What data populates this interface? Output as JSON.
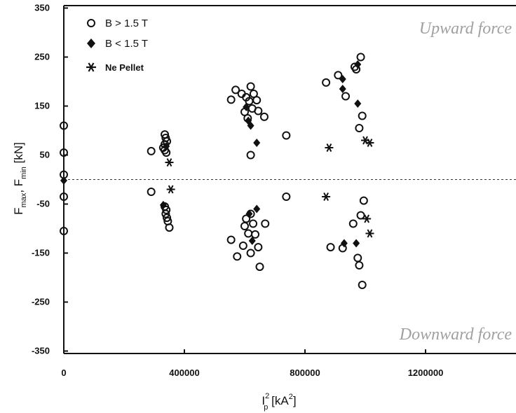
{
  "chart_data": {
    "type": "scatter",
    "x_ticks": [
      {
        "value": 0,
        "label": "0"
      },
      {
        "value": 400000,
        "label": "400000"
      },
      {
        "value": 800000,
        "label": "800000"
      },
      {
        "value": 1200000,
        "label": "1200000"
      }
    ],
    "y_ticks": [
      {
        "value": 350,
        "label": "350"
      },
      {
        "value": 250,
        "label": "250"
      },
      {
        "value": 150,
        "label": "150"
      },
      {
        "value": 50,
        "label": "50"
      },
      {
        "value": -50,
        "label": "-50"
      },
      {
        "value": -150,
        "label": "-150"
      },
      {
        "value": -250,
        "label": "-250"
      },
      {
        "value": -350,
        "label": "-350"
      }
    ],
    "xlim": [
      0,
      1500000
    ],
    "ylim": [
      -355,
      355
    ],
    "zero_line": 0,
    "ylabel_main": "F",
    "ylabel_sub1": "max",
    "ylabel_sep": ", F",
    "ylabel_sub2": "min",
    "ylabel_unit": " [kN]",
    "xlabel_main": "I",
    "xlabel_sup": "2",
    "xlabel_sub": "p",
    "xlabel_unit": " [kA",
    "xlabel_unit_sup": "2",
    "xlabel_close": "]",
    "annotations": {
      "upward": "Upward force",
      "downward": "Downward force"
    },
    "legend": [
      {
        "symbol": "open-circle",
        "label": "B > 1.5 T"
      },
      {
        "symbol": "filled-diamond",
        "label": "B < 1.5 T"
      },
      {
        "symbol": "asterisk",
        "label": "Ne Pellet"
      }
    ],
    "series": [
      {
        "symbol": "open-circle",
        "points": [
          [
            0,
            110
          ],
          [
            0,
            55
          ],
          [
            0,
            10
          ],
          [
            0,
            -35
          ],
          [
            0,
            -105
          ],
          [
            290000,
            58
          ],
          [
            290000,
            -25
          ],
          [
            335000,
            92
          ],
          [
            338000,
            85
          ],
          [
            342000,
            78
          ],
          [
            335000,
            72
          ],
          [
            330000,
            65
          ],
          [
            335000,
            60
          ],
          [
            340000,
            55
          ],
          [
            335000,
            -55
          ],
          [
            340000,
            -62
          ],
          [
            338000,
            -70
          ],
          [
            342000,
            -78
          ],
          [
            345000,
            -85
          ],
          [
            350000,
            -98
          ],
          [
            555000,
            163
          ],
          [
            570000,
            183
          ],
          [
            590000,
            175
          ],
          [
            605000,
            168
          ],
          [
            620000,
            190
          ],
          [
            615000,
            160
          ],
          [
            630000,
            175
          ],
          [
            640000,
            162
          ],
          [
            645000,
            140
          ],
          [
            600000,
            138
          ],
          [
            610000,
            125
          ],
          [
            625000,
            145
          ],
          [
            665000,
            128
          ],
          [
            620000,
            50
          ],
          [
            555000,
            -123
          ],
          [
            575000,
            -157
          ],
          [
            595000,
            -135
          ],
          [
            600000,
            -95
          ],
          [
            605000,
            -80
          ],
          [
            612000,
            -110
          ],
          [
            620000,
            -70
          ],
          [
            628000,
            -90
          ],
          [
            635000,
            -112
          ],
          [
            645000,
            -138
          ],
          [
            620000,
            -150
          ],
          [
            650000,
            -178
          ],
          [
            668000,
            -90
          ],
          [
            738000,
            90
          ],
          [
            738000,
            -35
          ],
          [
            870000,
            198
          ],
          [
            910000,
            213
          ],
          [
            935000,
            170
          ],
          [
            965000,
            230
          ],
          [
            970000,
            225
          ],
          [
            985000,
            250
          ],
          [
            990000,
            130
          ],
          [
            980000,
            105
          ],
          [
            960000,
            -90
          ],
          [
            885000,
            -138
          ],
          [
            925000,
            -140
          ],
          [
            975000,
            -160
          ],
          [
            980000,
            -175
          ],
          [
            990000,
            -215
          ],
          [
            995000,
            -43
          ],
          [
            985000,
            -73
          ]
        ]
      },
      {
        "symbol": "filled-diamond",
        "points": [
          [
            0,
            -2
          ],
          [
            330000,
            -52
          ],
          [
            340000,
            68
          ],
          [
            605000,
            148
          ],
          [
            612000,
            120
          ],
          [
            620000,
            110
          ],
          [
            640000,
            75
          ],
          [
            615000,
            -70
          ],
          [
            625000,
            -125
          ],
          [
            640000,
            -60
          ],
          [
            925000,
            205
          ],
          [
            925000,
            185
          ],
          [
            975000,
            235
          ],
          [
            975000,
            155
          ],
          [
            970000,
            -130
          ],
          [
            930000,
            -130
          ]
        ]
      },
      {
        "symbol": "asterisk",
        "points": [
          [
            350000,
            35
          ],
          [
            355000,
            -20
          ],
          [
            880000,
            65
          ],
          [
            870000,
            -35
          ],
          [
            1000000,
            80
          ],
          [
            1015000,
            75
          ],
          [
            1005000,
            -80
          ],
          [
            1015000,
            -110
          ]
        ]
      }
    ]
  }
}
